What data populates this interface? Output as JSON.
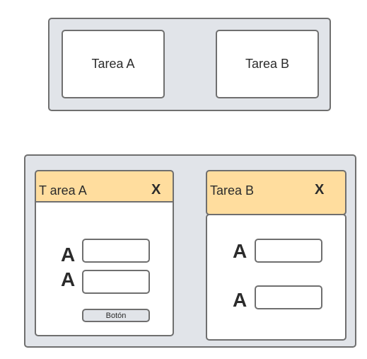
{
  "top_view": {
    "card_a": {
      "label": "Tarea A"
    },
    "card_b": {
      "label": "Tarea B"
    }
  },
  "bottom_view": {
    "tab_a": {
      "title": "T area A",
      "close": "X",
      "fields": [
        {
          "label": "A"
        },
        {
          "label": "A"
        }
      ],
      "button": "Botón"
    },
    "tab_b": {
      "title": "Tarea B",
      "close": "X",
      "fields": [
        {
          "label": "A"
        },
        {
          "label": "A"
        }
      ]
    }
  },
  "colors": {
    "panel": "#e1e4e9",
    "header": "#ffdd9e",
    "border": "#6f6f6f"
  }
}
